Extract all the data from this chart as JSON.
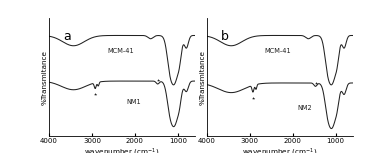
{
  "panel_a_label": "a",
  "panel_b_label": "b",
  "mcm41_label": "MCM-41",
  "nm1_label": "NM1",
  "nm2_label": "NM2",
  "xlabel": "wavenumber (cm$^{-1}$)",
  "ylabel": "%Transmitance",
  "xmin": 4000,
  "xmax": 600,
  "background_color": "#ffffff",
  "line_color": "#222222",
  "star1_wn": 2920,
  "star2_wn": 1460
}
